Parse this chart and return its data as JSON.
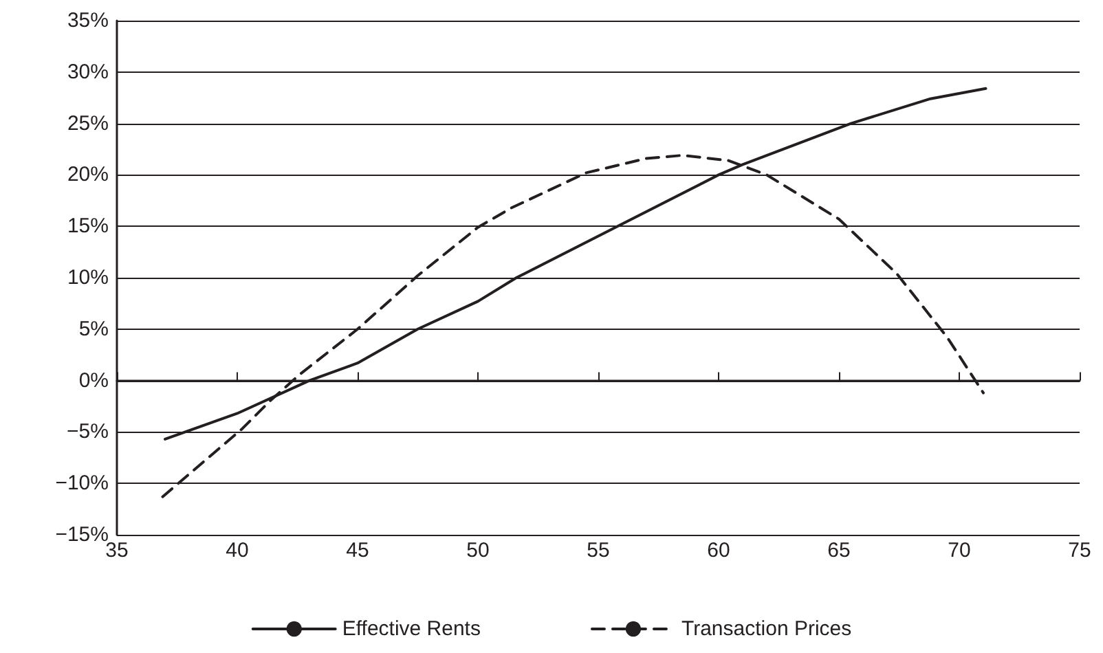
{
  "chart_data": {
    "type": "line",
    "xlim": [
      35,
      75
    ],
    "xticks": [
      35,
      40,
      45,
      50,
      55,
      60,
      65,
      70,
      75
    ],
    "ylim": [
      -15,
      35
    ],
    "yticks": [
      {
        "value": -15,
        "label": "−15%"
      },
      {
        "value": -10,
        "label": "−10%"
      },
      {
        "value": -5,
        "label": "−5%"
      },
      {
        "value": 0,
        "label": "0%"
      },
      {
        "value": 5,
        "label": "5%"
      },
      {
        "value": 10,
        "label": "10%"
      },
      {
        "value": 15,
        "label": "15%"
      },
      {
        "value": 20,
        "label": "20%"
      },
      {
        "value": 25,
        "label": "25%"
      },
      {
        "value": 30,
        "label": "30%"
      },
      {
        "value": 35,
        "label": "35%"
      }
    ],
    "grid": "y",
    "legend": "bottom",
    "marker": "none",
    "series": [
      {
        "name": "Effective Rents",
        "color": "#231f20",
        "line_style": "solid",
        "x": [
          37.0,
          40,
          43,
          45,
          47.5,
          50,
          51.6,
          55.8,
          60,
          61,
          65.5,
          68.8,
          71.1
        ],
        "values": [
          -5.7,
          -3.2,
          0,
          1.7,
          5,
          7.7,
          10,
          15,
          20,
          21,
          25,
          27.4,
          28.4
        ]
      },
      {
        "name": "Transaction Prices",
        "color": "#231f20",
        "line_style": "dashed",
        "x": [
          36.9,
          40.2,
          41.4,
          42.6,
          45,
          47.5,
          50,
          51.4,
          54.5,
          57,
          58.5,
          60.4,
          62,
          65,
          67.4,
          69.5,
          71
        ],
        "values": [
          -11.3,
          -4.7,
          -1.9,
          0.6,
          5,
          10.2,
          14.9,
          16.8,
          20.2,
          21.6,
          21.9,
          21.4,
          20,
          15.7,
          10.4,
          4.2,
          -1.2
        ]
      }
    ]
  }
}
